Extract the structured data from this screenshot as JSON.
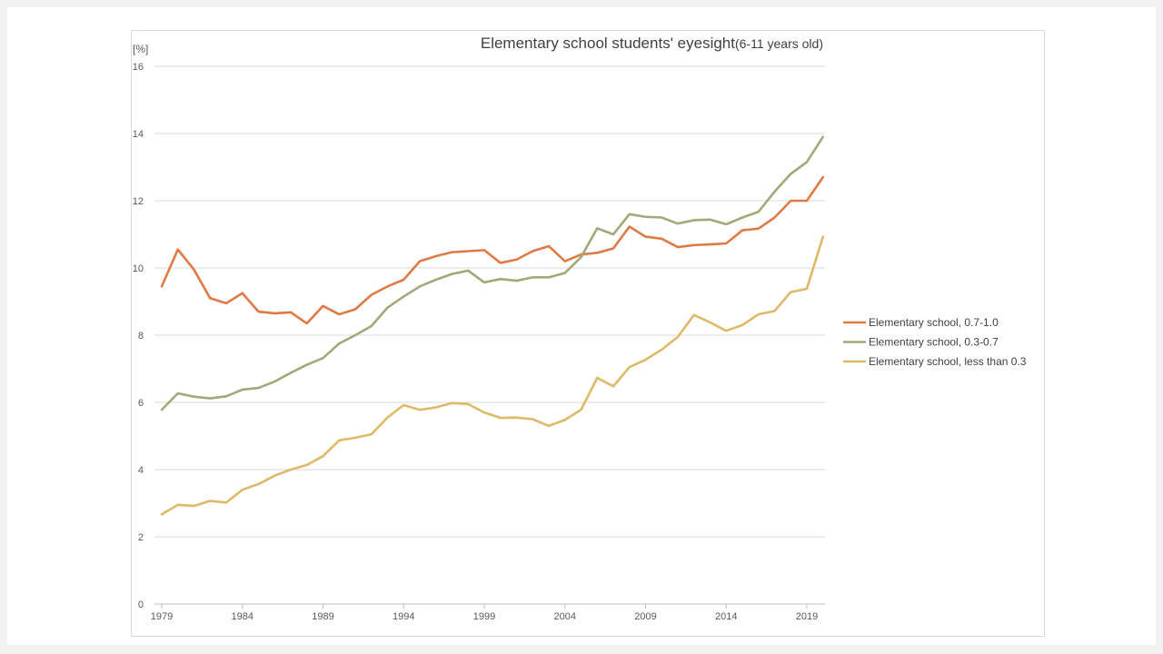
{
  "chart_data": {
    "type": "line",
    "title": "Elementary school students' eyesight",
    "subtitle": "(6-11 years old)",
    "ylabel": "[%]",
    "xlabel": "",
    "ylim": [
      0,
      16
    ],
    "yticks": [
      0,
      2,
      4,
      6,
      8,
      10,
      12,
      14,
      16
    ],
    "xlim": [
      1979,
      2020
    ],
    "xticks": [
      1979,
      1984,
      1989,
      1994,
      1999,
      2004,
      2009,
      2014,
      2019
    ],
    "grid": "horizontal",
    "legend_position": "right",
    "x": [
      1979,
      1980,
      1981,
      1982,
      1983,
      1984,
      1985,
      1986,
      1987,
      1988,
      1989,
      1990,
      1991,
      1992,
      1993,
      1994,
      1995,
      1996,
      1997,
      1998,
      1999,
      2000,
      2001,
      2002,
      2003,
      2004,
      2005,
      2006,
      2007,
      2008,
      2009,
      2010,
      2011,
      2012,
      2013,
      2014,
      2015,
      2016,
      2017,
      2018,
      2019,
      2020
    ],
    "series": [
      {
        "name": "Elementary school, 0.7-1.0",
        "color": "#e07a45",
        "values": [
          9.45,
          10.55,
          9.95,
          9.1,
          8.95,
          9.25,
          8.7,
          8.65,
          8.68,
          8.35,
          8.87,
          8.62,
          8.77,
          9.2,
          9.45,
          9.65,
          10.2,
          10.35,
          10.47,
          10.5,
          10.53,
          10.15,
          10.25,
          10.5,
          10.65,
          10.2,
          10.4,
          10.45,
          10.58,
          11.23,
          10.93,
          10.87,
          10.62,
          10.68,
          10.7,
          10.73,
          11.12,
          11.17,
          11.5,
          12.0,
          12.0,
          12.7
        ]
      },
      {
        "name": "Elementary school, 0.3-0.7",
        "color": "#a2a877",
        "values": [
          5.78,
          6.27,
          6.17,
          6.12,
          6.18,
          6.38,
          6.43,
          6.62,
          6.88,
          7.12,
          7.32,
          7.75,
          8.0,
          8.27,
          8.82,
          9.15,
          9.45,
          9.65,
          9.82,
          9.92,
          9.57,
          9.67,
          9.62,
          9.72,
          9.72,
          9.85,
          10.32,
          11.18,
          11.0,
          11.6,
          11.52,
          11.5,
          11.32,
          11.42,
          11.44,
          11.3,
          11.5,
          11.67,
          12.27,
          12.8,
          13.15,
          13.9
        ]
      },
      {
        "name": "Elementary school, less than 0.3",
        "color": "#deba68",
        "values": [
          2.67,
          2.95,
          2.92,
          3.07,
          3.02,
          3.4,
          3.57,
          3.82,
          4.0,
          4.14,
          4.4,
          4.87,
          4.95,
          5.05,
          5.55,
          5.92,
          5.78,
          5.85,
          5.98,
          5.95,
          5.7,
          5.54,
          5.55,
          5.5,
          5.3,
          5.48,
          5.78,
          6.73,
          6.48,
          7.05,
          7.27,
          7.57,
          7.95,
          8.6,
          8.38,
          8.13,
          8.3,
          8.62,
          8.72,
          9.28,
          9.38,
          10.93
        ]
      }
    ]
  }
}
